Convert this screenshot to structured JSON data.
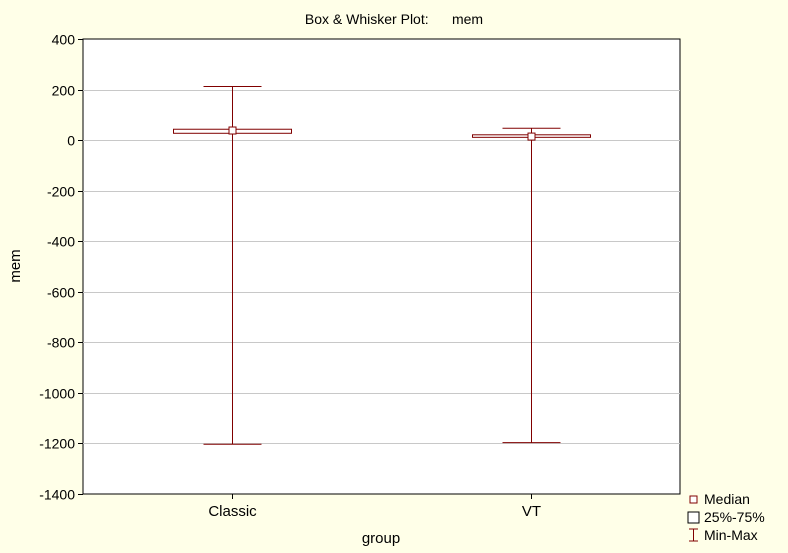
{
  "chart_data": {
    "type": "boxplot",
    "title": "Box & Whisker Plot:      mem",
    "xlabel": "group",
    "ylabel": "mem",
    "ylim": [
      -1400,
      400
    ],
    "yticks": [
      400,
      200,
      0,
      -200,
      -400,
      -600,
      -800,
      -1000,
      -1200,
      -1400
    ],
    "grid": true,
    "legend_position": "bottom-right",
    "categories": [
      "Classic",
      "VT"
    ],
    "boxes": [
      {
        "category": "Classic",
        "median": 38,
        "q1": 27,
        "q3": 43,
        "min": -1203,
        "max": 212
      },
      {
        "category": "VT",
        "median": 14,
        "q1": 11,
        "q3": 21,
        "min": -1197,
        "max": 47
      }
    ],
    "legend": [
      "Median",
      "25%-75%",
      "Min-Max"
    ],
    "colors": {
      "background": "#ffffe8",
      "plot_area": "#ffffff",
      "box_stroke": "#800000",
      "whisker": "#800000",
      "grid": "#c8c8c8",
      "axis": "#000000"
    }
  }
}
